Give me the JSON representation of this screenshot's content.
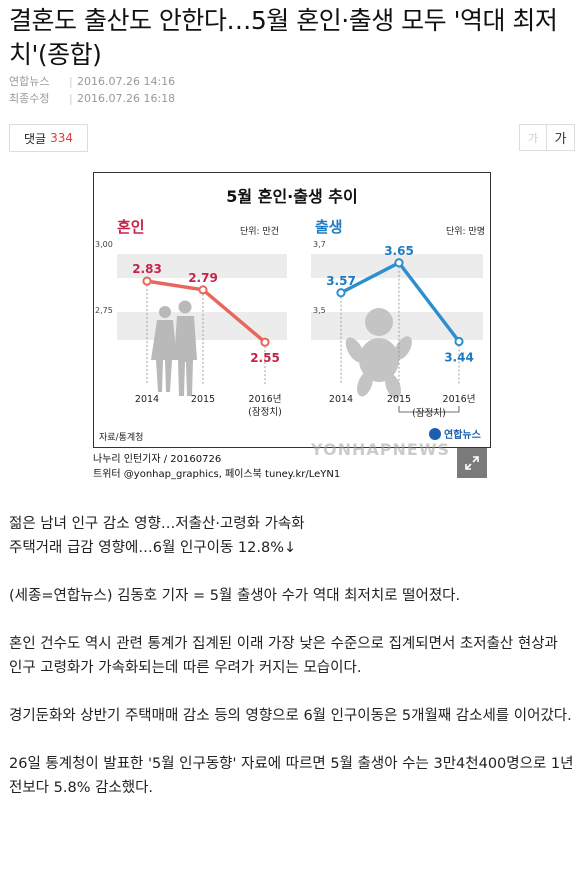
{
  "article": {
    "headline": "결혼도 출산도 안한다…5월 혼인·출생 모두 '역대 최저치'(종합)",
    "meta": [
      {
        "label": "연합뉴스",
        "value": "2016.07.26 14:16"
      },
      {
        "label": "최종수정",
        "value": "2016.07.26 16:18"
      }
    ],
    "comment_label": "댓글",
    "comment_count": "334",
    "font_small": "가",
    "font_large": "가"
  },
  "figure": {
    "caption_line1": "나누리 인턴기자 / 20160726",
    "caption_line2": "트위터 @yonhap_graphics, 페이스북 tuney.kr/LeYN1",
    "watermark": "YONHAPNEWS",
    "source_label": "자료/통계청",
    "logo_text": "연합뉴스",
    "expand_icon": "expand-icon"
  },
  "chart_data": [
    {
      "type": "line",
      "title": "5월 혼인·출생 추이",
      "name_text": "혼인",
      "unit": "단위: 만건",
      "categories": [
        "2014",
        "2015",
        "2016년"
      ],
      "category_note": "(잠정치)",
      "values": [
        2.83,
        2.79,
        2.55
      ],
      "value_labels": [
        "2.83",
        "2.79",
        "2.55"
      ],
      "ytick_labels": [
        "3,00",
        "2,75"
      ],
      "ylim": [
        2.45,
        3.0
      ],
      "color": "#e8665e",
      "label_color": "#c7244a"
    },
    {
      "type": "line",
      "name_text": "출생",
      "unit": "단위: 만명",
      "categories": [
        "2014",
        "2015",
        "2016년"
      ],
      "category_note": "(잠정치)",
      "values": [
        3.57,
        3.65,
        3.44
      ],
      "value_labels": [
        "3.57",
        "3.65",
        "3.44"
      ],
      "ytick_labels": [
        "3,7",
        "3,5"
      ],
      "ylim": [
        3.38,
        3.7
      ],
      "color": "#2e8fcf",
      "label_color": "#1f7cc2"
    }
  ],
  "body": {
    "sub1": "젊은 남녀 인구 감소 영향…저출산·고령화 가속화",
    "sub2": "주택거래 급감 영향에…6월 인구이동 12.8%↓",
    "p1": "(세종=연합뉴스) 김동호 기자 = 5월 출생아 수가 역대 최저치로 떨어졌다.",
    "p2": "혼인 건수도 역시 관련 통계가 집계된 이래 가장 낮은 수준으로 집계되면서 초저출산 현상과 인구 고령화가 가속화되는데 따른 우려가 커지는 모습이다.",
    "p3": "경기둔화와 상반기 주택매매 감소 등의 영향으로 6월 인구이동은 5개월째 감소세를 이어갔다.",
    "p4": "26일 통계청이 발표한 '5월 인구동향' 자료에 따르면 5월 출생아 수는 3만4천400명으로 1년 전보다 5.8% 감소했다."
  }
}
